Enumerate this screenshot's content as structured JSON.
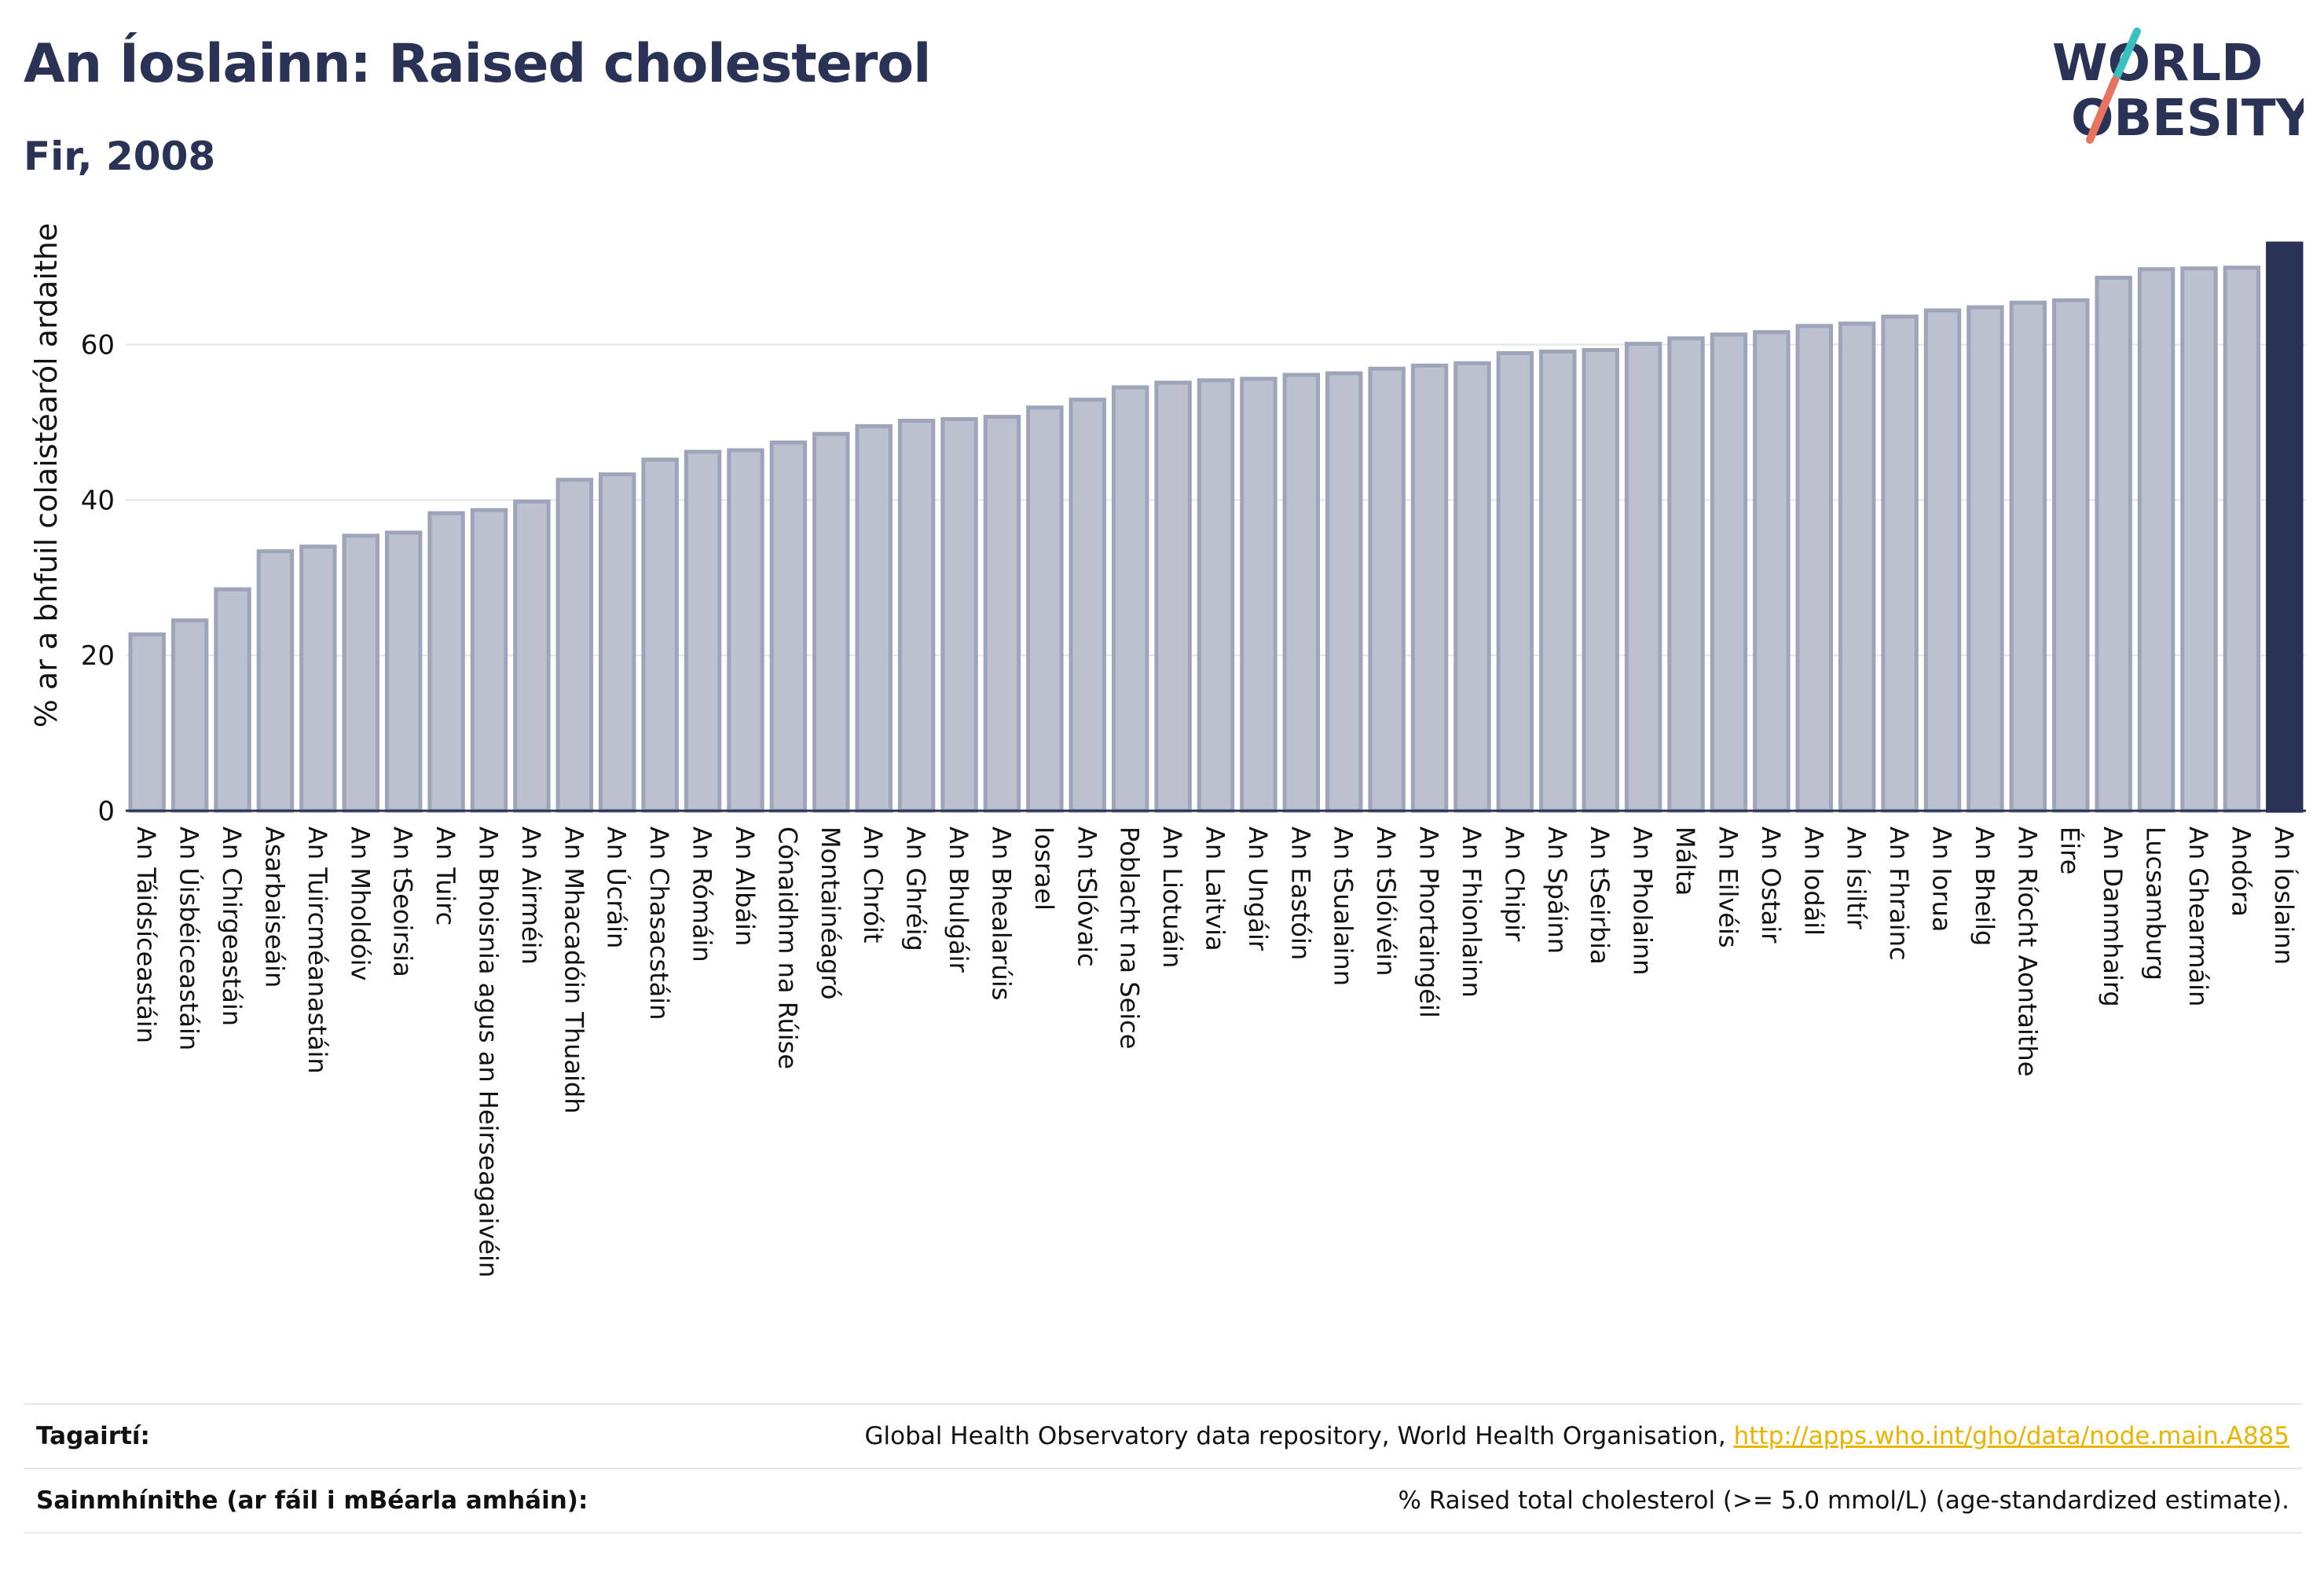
{
  "header": {
    "title": "An Íoslainn: Raised cholesterol",
    "subtitle": "Fir, 2008"
  },
  "logo": {
    "line1": "WORLD",
    "line2": "OBESITY"
  },
  "colors": {
    "bar": "#bcc0cf",
    "bar_stroke": "#9ea4b9",
    "highlight": "#2a3356",
    "grid": "#e5e5e5",
    "logo_text": "#2a3356",
    "logo_slash_top": "#3bbfbf",
    "logo_slash_bottom": "#e8735f"
  },
  "chart_data": {
    "type": "bar",
    "ylabel": "% ar a bhfuil colaistéaról ardaithe",
    "xlabel": "",
    "ylim": [
      0,
      73
    ],
    "yticks": [
      0,
      20,
      40,
      60
    ],
    "grid": true,
    "highlight_category": "An Íoslainn",
    "categories": [
      "An Táidsíceastáin",
      "An Úisbéiceastáin",
      "An Chirgeastáin",
      "Asarbaiseáin",
      "An Tuircméanastáin",
      "An Mholdóiv",
      "An tSeoirsia",
      "An Tuirc",
      "An Bhoisnia agus an Heirseagaivéin",
      "An Airméin",
      "An Mhacadóin Thuaidh",
      "An Úcráin",
      "An Chasacstáin",
      "An Rómáin",
      "An Albáin",
      "Cónaidhm na Rúise",
      "Montainéagró",
      "An Chróit",
      "An Ghréig",
      "An Bhulgáir",
      "An Bhealarúis",
      "Iosrael",
      "An tSlóvaic",
      "Poblacht na Seice",
      "An Liotuáin",
      "An Laitvia",
      "An Ungáir",
      "An Eastóin",
      "An tSualainn",
      "An tSlóivéin",
      "An Phortaingéil",
      "An Fhionlainn",
      "An Chipir",
      "An Spáinn",
      "An tSeirbia",
      "An Pholainn",
      "Málta",
      "An Eilvéis",
      "An Ostair",
      "An Iodáil",
      "An Ísiltír",
      "An Fhrainc",
      "An Iorua",
      "An Bheilg",
      "An Ríocht Aontaithe",
      "Éire",
      "An Danmhairg",
      "Lucsamburg",
      "An Ghearmáin",
      "Andóra",
      "An Íoslainn"
    ],
    "values": [
      22.7,
      24.5,
      28.5,
      33.4,
      34.0,
      35.4,
      35.8,
      38.3,
      38.7,
      39.8,
      42.6,
      43.3,
      45.2,
      46.2,
      46.4,
      47.4,
      48.5,
      49.5,
      50.2,
      50.4,
      50.7,
      51.9,
      52.9,
      54.5,
      55.1,
      55.4,
      55.6,
      56.1,
      56.3,
      56.9,
      57.3,
      57.6,
      58.9,
      59.1,
      59.3,
      60.1,
      60.8,
      61.3,
      61.6,
      62.4,
      62.7,
      63.6,
      64.4,
      64.8,
      65.4,
      65.7,
      68.6,
      69.7,
      69.8,
      69.9,
      73.0
    ]
  },
  "footer": {
    "references_label": "Tagairtí:",
    "references_text": "Global Health Observatory data repository, World Health Organisation, ",
    "references_link": "http://apps.who.int/gho/data/node.main.A885",
    "definitions_label": "Sainmhínithe (ar fáil i mBéarla amháin):",
    "definitions_text": "% Raised total cholesterol (>= 5.0 mmol/L) (age-standardized estimate)."
  }
}
